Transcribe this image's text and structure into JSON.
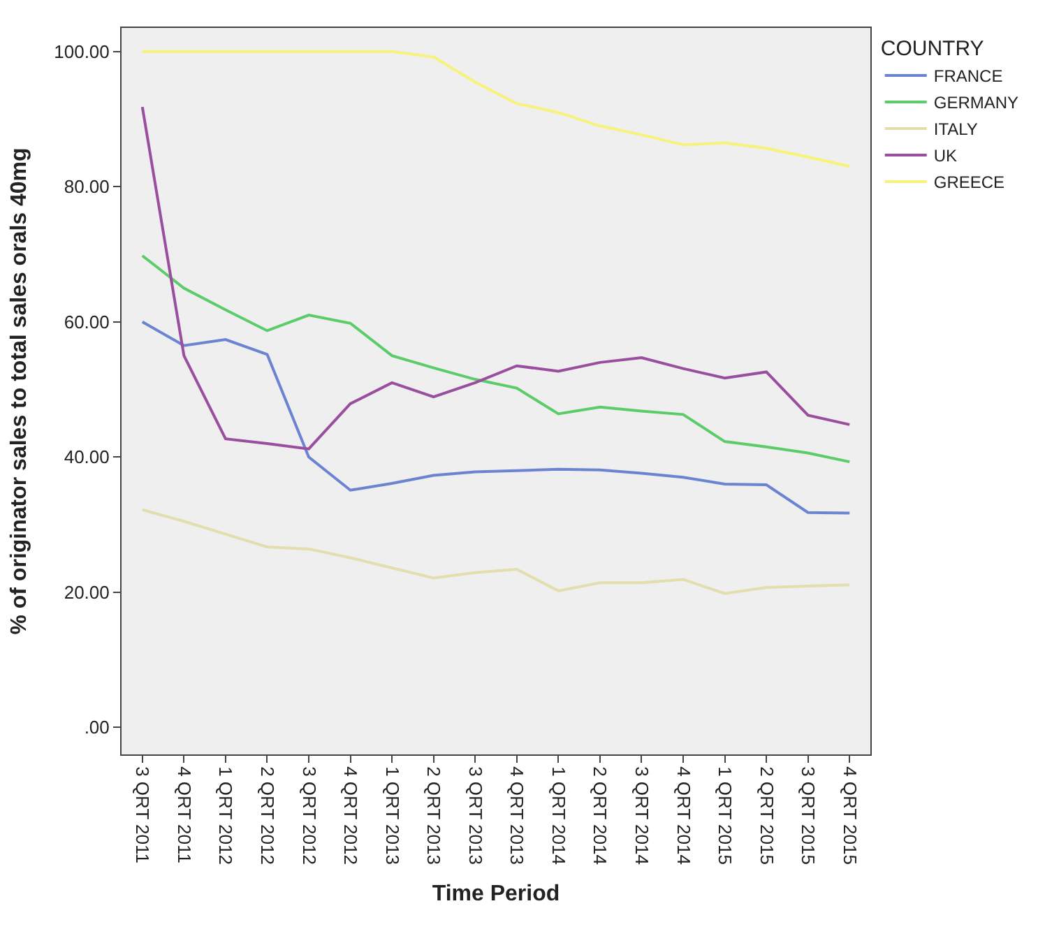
{
  "chart_data": {
    "type": "line",
    "xlabel": "Time Period",
    "ylabel": "% of originator sales to total sales orals 40mg",
    "legend_title": "COUNTRY",
    "categories": [
      "3 QRT 2011",
      "4 QRT 2011",
      "1 QRT 2012",
      "2 QRT 2012",
      "3 QRT 2012",
      "4 QRT 2012",
      "1 QRT 2013",
      "2 QRT 2013",
      "3 QRT 2013",
      "4 QRT 2013",
      "1 QRT 2014",
      "2 QRT 2014",
      "3 QRT 2014",
      "4 QRT 2014",
      "1 QRT 2015",
      "2 QRT 2015",
      "3 QRT 2015",
      "4 QRT 2015"
    ],
    "series": [
      {
        "name": "FRANCE",
        "color": "#6b84d2",
        "values": [
          60,
          56.5,
          57.4,
          55.2,
          40,
          35.1,
          36.1,
          37.3,
          37.8,
          38,
          38.2,
          38.1,
          37.6,
          37,
          36,
          35.9,
          31.8,
          31.7
        ]
      },
      {
        "name": "GERMANY",
        "color": "#5ccc6a",
        "values": [
          69.8,
          65,
          61.8,
          58.7,
          61,
          59.8,
          55,
          53.2,
          51.5,
          50.2,
          46.4,
          47.4,
          46.8,
          46.3,
          42.3,
          41.5,
          40.6,
          39.3
        ]
      },
      {
        "name": "ITALY",
        "color": "#e2deae",
        "values": [
          32.2,
          30.5,
          28.6,
          26.7,
          26.4,
          25.1,
          23.6,
          22.1,
          22.9,
          23.4,
          20.2,
          21.4,
          21.4,
          21.9,
          19.8,
          20.7,
          20.9,
          21.1
        ]
      },
      {
        "name": "UK",
        "color": "#9a4e9e",
        "values": [
          91.8,
          55,
          42.7,
          42,
          41.2,
          47.9,
          51,
          48.9,
          51,
          53.5,
          52.7,
          54,
          54.7,
          53.1,
          51.7,
          52.6,
          46.2,
          44.8
        ]
      },
      {
        "name": "GREECE",
        "color": "#f6f27a",
        "values": [
          100,
          100,
          100,
          100,
          100,
          100,
          100,
          99.2,
          95.5,
          92.3,
          91,
          89,
          87.7,
          86.2,
          86.5,
          85.7,
          84.4,
          83
        ]
      }
    ],
    "ylim": [
      -4,
      103.5
    ],
    "yticks": [
      {
        "value": 0,
        "label": ".00"
      },
      {
        "value": 20,
        "label": "20.00"
      },
      {
        "value": 40,
        "label": "40.00"
      },
      {
        "value": 60,
        "label": "60.00"
      },
      {
        "value": 80,
        "label": "80.00"
      },
      {
        "value": 100,
        "label": "100.00"
      }
    ],
    "grid": false,
    "legend": "top right",
    "marker": "none",
    "line_style": "solid"
  }
}
